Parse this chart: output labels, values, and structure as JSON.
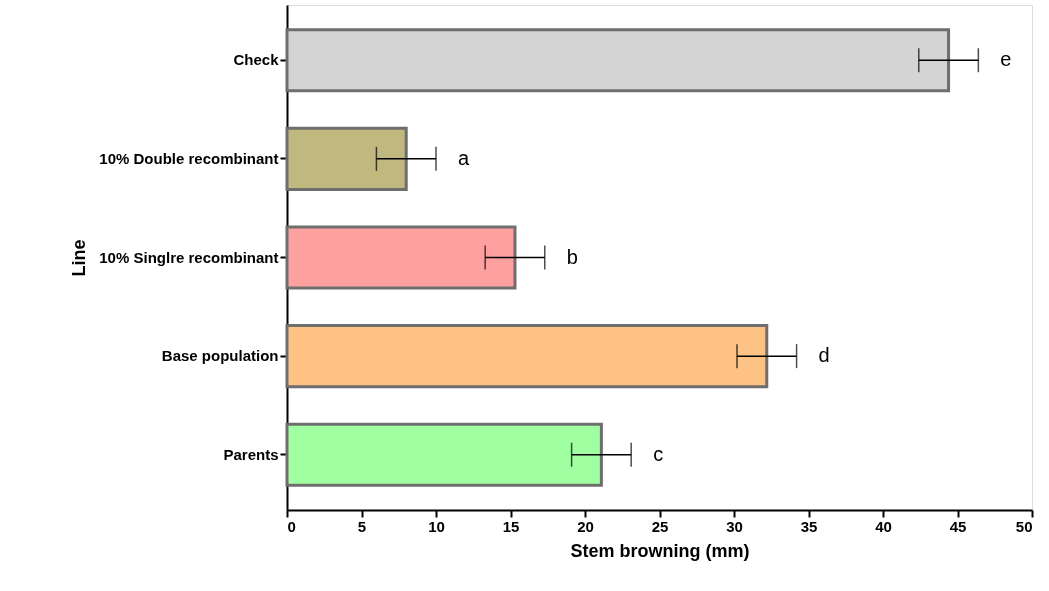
{
  "chart_data": {
    "type": "bar",
    "orientation": "horizontal",
    "xlabel": "Stem browning (mm)",
    "ylabel": "Line",
    "categories": [
      "Check",
      "10% Double recombinant",
      "10% Singlre recombinant",
      "Base population",
      "Parents"
    ],
    "values": [
      44.4,
      8.0,
      15.3,
      32.2,
      21.1
    ],
    "errors": [
      2.0,
      2.0,
      2.0,
      2.0,
      2.0
    ],
    "colors": [
      "#d4d4d4",
      "#c0b87f",
      "#ffa0a0",
      "#ffc285",
      "#a0ffa0"
    ],
    "xlim": [
      0,
      50
    ],
    "xticks": [
      0,
      5,
      10,
      15,
      20,
      25,
      30,
      35,
      40,
      45,
      50
    ],
    "grid": false,
    "annotations": [
      "e",
      "a",
      "b",
      "d",
      "c"
    ]
  }
}
